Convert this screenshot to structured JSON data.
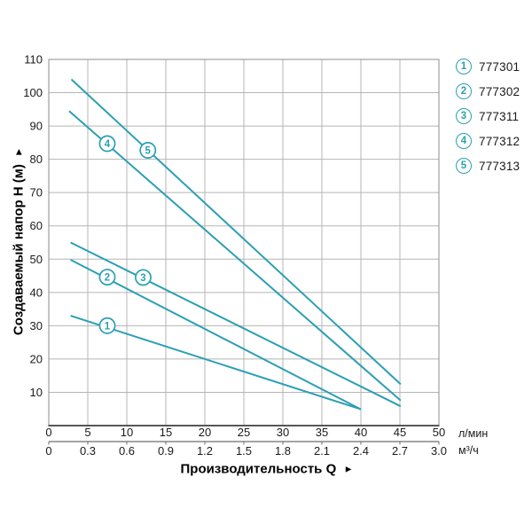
{
  "chart_data": {
    "type": "line",
    "title": "",
    "xlabel": "Производительность Q",
    "xlabel_arrow": "►",
    "ylabel": "Создаваемый напор Н (м)",
    "ylabel_arrow": "►",
    "x_axis_primary": {
      "unit": "л/мин",
      "range": [
        0,
        50
      ],
      "tick_step": 5,
      "ticks": [
        "0",
        "5",
        "10",
        "15",
        "20",
        "25",
        "30",
        "35",
        "40",
        "45",
        "50"
      ]
    },
    "x_axis_secondary": {
      "unit": "м³/ч",
      "range": [
        0,
        3
      ],
      "ticks": [
        "0",
        "0.3",
        "0.6",
        "0.9",
        "1.2",
        "1.5",
        "1.8",
        "2.1",
        "2.4",
        "2.7",
        "3.0"
      ]
    },
    "y_axis": {
      "range": [
        0,
        110
      ],
      "tick_step": 10,
      "ticks": [
        "10",
        "20",
        "30",
        "40",
        "50",
        "60",
        "70",
        "80",
        "90",
        "100",
        "110"
      ]
    },
    "grid": true,
    "legend_position": "top-right",
    "series": [
      {
        "num": "1",
        "label": "777301",
        "points": [
          [
            2.8,
            33.0
          ],
          [
            40.0,
            4.9
          ]
        ],
        "marker_at": [
          7.5,
          30.0
        ]
      },
      {
        "num": "2",
        "label": "777302",
        "points": [
          [
            2.8,
            49.8
          ],
          [
            40.0,
            4.9
          ]
        ],
        "marker_at": [
          7.5,
          44.6
        ]
      },
      {
        "num": "3",
        "label": "777311",
        "points": [
          [
            2.8,
            55.0
          ],
          [
            45.1,
            5.8
          ]
        ],
        "marker_at": [
          12.1,
          44.5
        ]
      },
      {
        "num": "4",
        "label": "777312",
        "points": [
          [
            2.6,
            94.5
          ],
          [
            45.1,
            7.5
          ]
        ],
        "marker_at": [
          7.5,
          84.7
        ]
      },
      {
        "num": "5",
        "label": "777313",
        "points": [
          [
            2.9,
            104.0
          ],
          [
            45.1,
            12.4
          ]
        ],
        "marker_at": [
          12.7,
          82.7
        ]
      }
    ],
    "colors": {
      "line": "#2b9fb3",
      "grid": "#b5b5b5",
      "plot_border": "#8c8c8c",
      "axis_line": "#3f3f3f",
      "secondary_axis": "#6e6e6e",
      "text": "#1a1a1a"
    }
  }
}
